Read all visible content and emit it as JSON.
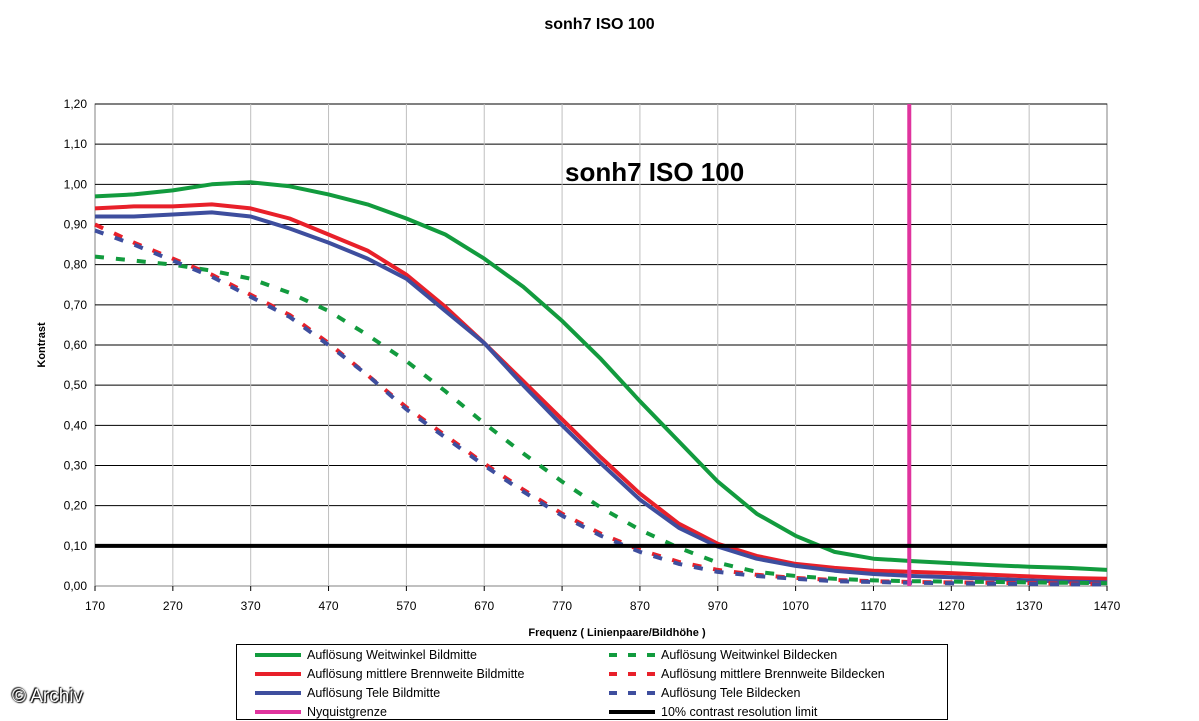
{
  "chart_data": {
    "type": "line",
    "title": "sonh7 ISO 100",
    "inner_title": "sonh7 ISO 100",
    "xlabel": "Frequenz ( Linienpaare/Bildhöhe )",
    "ylabel": "Kontrast",
    "xlim": [
      170,
      1470
    ],
    "ylim": [
      0,
      1.2
    ],
    "x_ticks": [
      "170",
      "270",
      "370",
      "470",
      "570",
      "670",
      "770",
      "870",
      "970",
      "1070",
      "1170",
      "1270",
      "1370",
      "1470"
    ],
    "y_ticks": [
      "0,00",
      "0,10",
      "0,20",
      "0,30",
      "0,40",
      "0,50",
      "0,60",
      "0,70",
      "0,80",
      "0,90",
      "1,00",
      "1,10",
      "1,20"
    ],
    "grid": true,
    "legend_position": "bottom",
    "series": [
      {
        "name": "Auflösung Weitwinkel Bildmitte",
        "color": "#129b3e",
        "dash": false,
        "x": [
          170,
          220,
          270,
          320,
          370,
          420,
          470,
          520,
          570,
          620,
          670,
          720,
          770,
          820,
          870,
          920,
          970,
          1020,
          1070,
          1120,
          1170,
          1220,
          1270,
          1320,
          1370,
          1420,
          1470
        ],
        "y": [
          0.97,
          0.975,
          0.985,
          1.0,
          1.005,
          0.995,
          0.975,
          0.95,
          0.915,
          0.875,
          0.815,
          0.745,
          0.66,
          0.565,
          0.46,
          0.36,
          0.26,
          0.18,
          0.125,
          0.085,
          0.068,
          0.062,
          0.057,
          0.052,
          0.048,
          0.045,
          0.04
        ]
      },
      {
        "name": "Auflösung mittlere Brennweite Bildmitte",
        "color": "#e8202a",
        "dash": false,
        "x": [
          170,
          220,
          270,
          320,
          370,
          420,
          470,
          520,
          570,
          620,
          670,
          720,
          770,
          820,
          870,
          920,
          970,
          1020,
          1070,
          1120,
          1170,
          1220,
          1270,
          1320,
          1370,
          1420,
          1470
        ],
        "y": [
          0.94,
          0.945,
          0.945,
          0.95,
          0.94,
          0.915,
          0.875,
          0.835,
          0.775,
          0.695,
          0.605,
          0.51,
          0.415,
          0.32,
          0.23,
          0.155,
          0.105,
          0.075,
          0.055,
          0.045,
          0.038,
          0.035,
          0.032,
          0.028,
          0.024,
          0.02,
          0.018
        ]
      },
      {
        "name": "Auflösung Tele Bildmitte",
        "color": "#3e4e9e",
        "dash": false,
        "x": [
          170,
          220,
          270,
          320,
          370,
          420,
          470,
          520,
          570,
          620,
          670,
          720,
          770,
          820,
          870,
          920,
          970,
          1020,
          1070,
          1120,
          1170,
          1220,
          1270,
          1320,
          1370,
          1420,
          1470
        ],
        "y": [
          0.92,
          0.92,
          0.925,
          0.93,
          0.92,
          0.89,
          0.855,
          0.815,
          0.765,
          0.685,
          0.605,
          0.5,
          0.4,
          0.305,
          0.215,
          0.145,
          0.098,
          0.068,
          0.05,
          0.038,
          0.03,
          0.025,
          0.022,
          0.018,
          0.014,
          0.011,
          0.009
        ]
      },
      {
        "name": "Auflösung Weitwinkel Bildecken",
        "color": "#129b3e",
        "dash": true,
        "x": [
          170,
          220,
          270,
          320,
          370,
          420,
          470,
          520,
          570,
          620,
          670,
          720,
          770,
          820,
          870,
          920,
          970,
          1020,
          1070,
          1120,
          1170,
          1220,
          1270,
          1320,
          1370,
          1420,
          1470
        ],
        "y": [
          0.82,
          0.81,
          0.8,
          0.785,
          0.765,
          0.73,
          0.685,
          0.625,
          0.56,
          0.485,
          0.405,
          0.33,
          0.26,
          0.195,
          0.14,
          0.095,
          0.058,
          0.035,
          0.025,
          0.018,
          0.014,
          0.012,
          0.011,
          0.01,
          0.009,
          0.008,
          0.007
        ]
      },
      {
        "name": "Auflösung mittlere Brennweite Bildecken",
        "color": "#e8202a",
        "dash": true,
        "x": [
          170,
          220,
          270,
          320,
          370,
          420,
          470,
          520,
          570,
          620,
          670,
          720,
          770,
          820,
          870,
          920,
          970,
          1020,
          1070,
          1120,
          1170,
          1220,
          1270,
          1320,
          1370,
          1420,
          1470
        ],
        "y": [
          0.9,
          0.855,
          0.815,
          0.775,
          0.725,
          0.675,
          0.605,
          0.525,
          0.445,
          0.375,
          0.305,
          0.24,
          0.18,
          0.13,
          0.09,
          0.06,
          0.04,
          0.028,
          0.02,
          0.015,
          0.012,
          0.01,
          0.009,
          0.008,
          0.007,
          0.006,
          0.005
        ]
      },
      {
        "name": "Auflösung Tele Bildecken",
        "color": "#3e4e9e",
        "dash": true,
        "x": [
          170,
          220,
          270,
          320,
          370,
          420,
          470,
          520,
          570,
          620,
          670,
          720,
          770,
          820,
          870,
          920,
          970,
          1020,
          1070,
          1120,
          1170,
          1220,
          1270,
          1320,
          1370,
          1420,
          1470
        ],
        "y": [
          0.885,
          0.85,
          0.81,
          0.77,
          0.72,
          0.67,
          0.6,
          0.525,
          0.44,
          0.37,
          0.3,
          0.235,
          0.175,
          0.125,
          0.085,
          0.055,
          0.035,
          0.025,
          0.018,
          0.012,
          0.01,
          0.008,
          0.007,
          0.006,
          0.005,
          0.004,
          0.004
        ]
      },
      {
        "name": "Nyquistgrenze",
        "color": "#e0349e",
        "dash": false,
        "vertical_x": 1216
      },
      {
        "name": "10% contrast resolution limit",
        "color": "#000000",
        "dash": false,
        "horizontal_y": 0.1
      }
    ]
  },
  "watermark": "© Archiv"
}
